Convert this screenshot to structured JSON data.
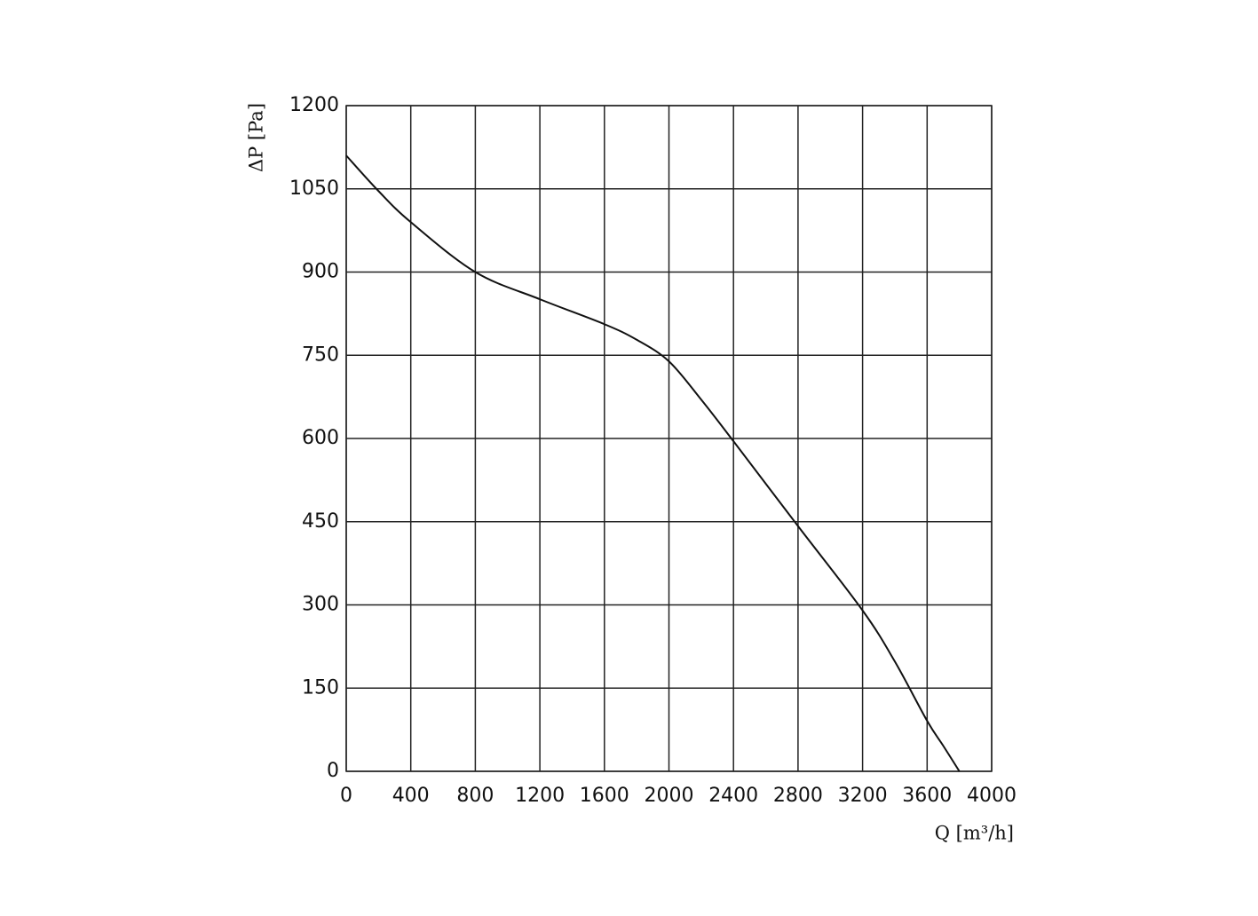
{
  "chart_data": {
    "type": "line",
    "x_label": "Q [m³/h]",
    "y_label": "ΔP [Pa]",
    "x": [
      0,
      200,
      400,
      800,
      1200,
      1600,
      1800,
      2000,
      2200,
      2400,
      2800,
      3200,
      3400,
      3600,
      3700,
      3800
    ],
    "series": [
      {
        "name": "ΔP",
        "color": "#111111",
        "values": [
          1110,
          1046,
          990,
          900,
          851,
          806,
          778,
          739,
          670,
          595,
          442,
          290,
          198,
          91,
          46,
          0
        ]
      }
    ],
    "xlim": [
      0,
      4000
    ],
    "xticks": [
      0,
      400,
      800,
      1200,
      1600,
      2000,
      2400,
      2800,
      3200,
      3600,
      4000
    ],
    "ylim": [
      0,
      1200
    ],
    "yticks": [
      0,
      150,
      300,
      450,
      600,
      750,
      900,
      1050,
      1200
    ],
    "grid": true
  }
}
